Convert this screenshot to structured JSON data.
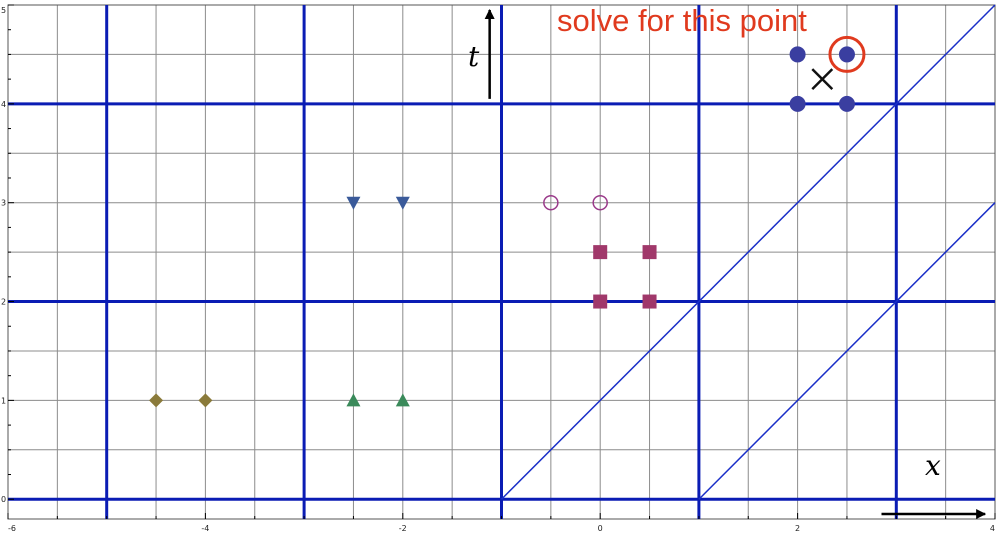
{
  "annotation": {
    "text": "solve for this point",
    "color": "#e03a1e"
  },
  "axis_vars": {
    "x": "x",
    "t": "t"
  },
  "colors": {
    "thin_grid": "#8c8c8c",
    "major_grid": "#0a1cb4",
    "diag": "#1a2fc8",
    "circle_marker": "#3a3ea0",
    "hollow_marker": "#9a3a8a",
    "square_marker": "#a0386a",
    "down_tri_marker": "#3a5a9a",
    "up_tri_marker": "#3a8a5a",
    "diamond_marker": "#8a7a3a",
    "highlight_ring": "#e03a1e",
    "cross": "#111111"
  },
  "chart_data": {
    "type": "scatter",
    "xlim": [
      -6,
      4
    ],
    "ylim": [
      -0.2,
      5
    ],
    "x_ticks": [
      -6,
      -4,
      -2,
      0,
      2,
      4
    ],
    "y_ticks": [
      0,
      1,
      2,
      3,
      4,
      5
    ],
    "x_tick_labels": [
      "-6",
      "-4",
      "-2",
      "0",
      "2",
      "4"
    ],
    "y_tick_labels": [
      "0",
      "1",
      "2",
      "3",
      "4",
      "5"
    ],
    "thin_grid_x_step": 0.5,
    "thin_grid_y_step": 0.5,
    "major_grid_x": [
      -5,
      -3,
      -1,
      1,
      3
    ],
    "major_grid_y": [
      0,
      2,
      4
    ],
    "diagonal_lines": [
      {
        "from": [
          -1,
          0
        ],
        "to": [
          4,
          5
        ]
      },
      {
        "from": [
          1,
          0
        ],
        "to": [
          4,
          3
        ]
      }
    ],
    "series": [
      {
        "marker": "circle",
        "points": [
          [
            2,
            4
          ],
          [
            2.5,
            4
          ],
          [
            2,
            4.5
          ],
          [
            2.5,
            4.5
          ]
        ]
      },
      {
        "marker": "hollow-circle",
        "points": [
          [
            -0.5,
            3
          ],
          [
            0,
            3
          ]
        ]
      },
      {
        "marker": "square",
        "points": [
          [
            0,
            2
          ],
          [
            0.5,
            2
          ],
          [
            0,
            2.5
          ],
          [
            0.5,
            2.5
          ]
        ]
      },
      {
        "marker": "down-triangle",
        "points": [
          [
            -2.5,
            3
          ],
          [
            -2,
            3
          ]
        ]
      },
      {
        "marker": "up-triangle",
        "points": [
          [
            -2.5,
            1
          ],
          [
            -2,
            1
          ]
        ]
      },
      {
        "marker": "diamond",
        "points": [
          [
            -4.5,
            1
          ],
          [
            -4,
            1
          ]
        ]
      }
    ],
    "highlighted_point": [
      2.5,
      4.5
    ],
    "cross_point": [
      2.25,
      4.25
    ],
    "x_axis_arrow": {
      "from": [
        2.85,
        -0.15
      ],
      "to": [
        3.9,
        -0.15
      ]
    },
    "t_axis_arrow": {
      "from": [
        -1.12,
        4.05
      ],
      "to": [
        -1.12,
        4.95
      ]
    }
  }
}
